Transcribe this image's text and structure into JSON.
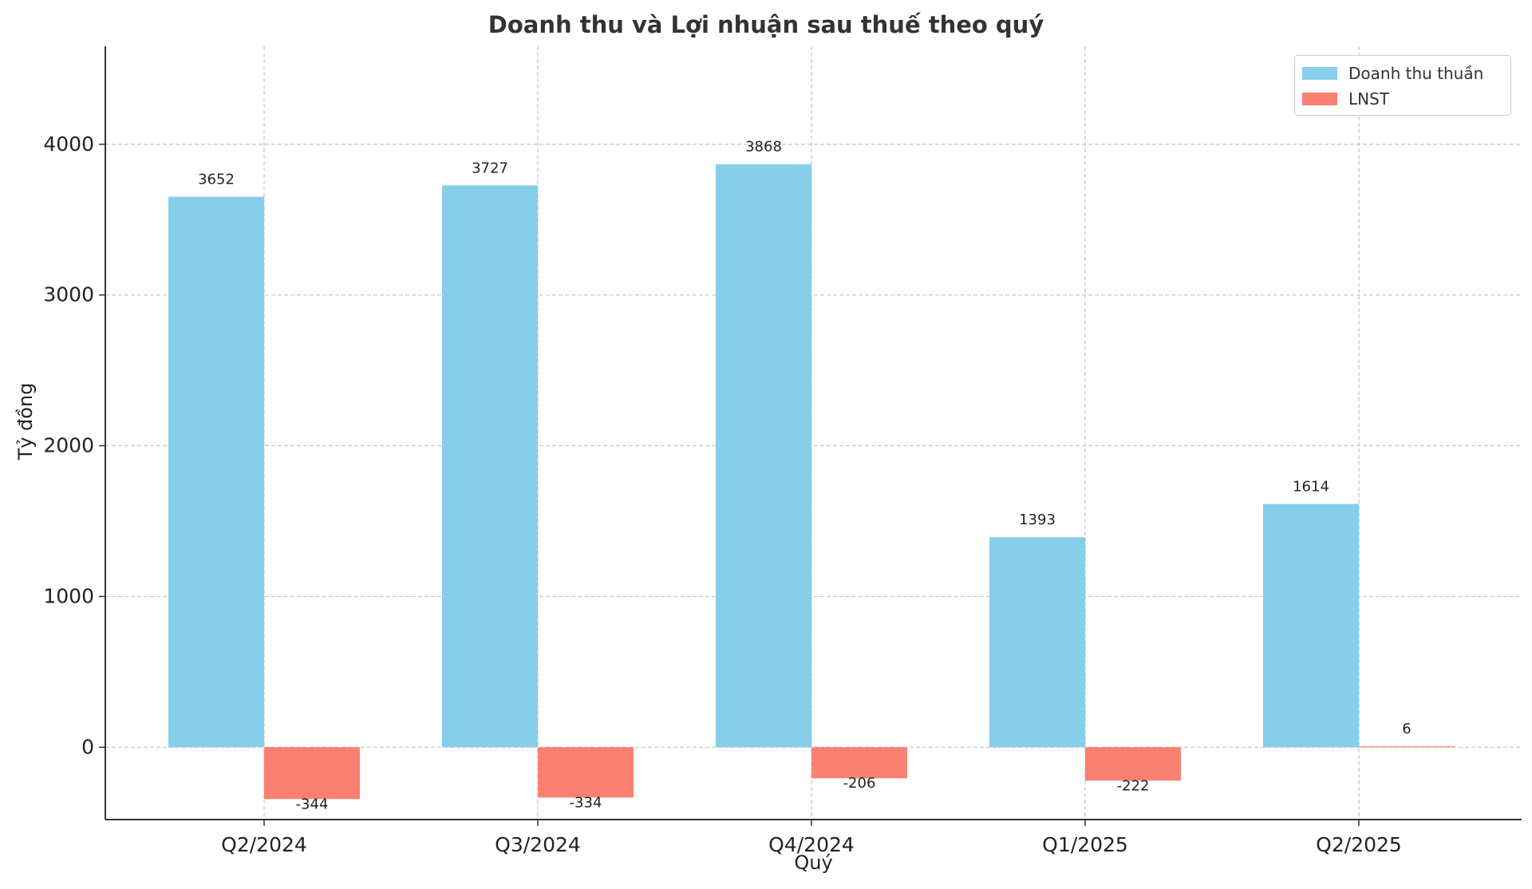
{
  "chart_data": {
    "type": "bar",
    "title": "Doanh thu và Lợi nhuận sau thuế theo quý",
    "xlabel": "Quý",
    "ylabel": "Tỷ đồng",
    "categories": [
      "Q2/2024",
      "Q3/2024",
      "Q4/2024",
      "Q1/2025",
      "Q2/2025"
    ],
    "series": [
      {
        "name": "Doanh thu thuần",
        "values": [
          3652,
          3727,
          3868,
          1393,
          1614
        ],
        "color": "#87CEEB"
      },
      {
        "name": "LNST",
        "values": [
          -344,
          -334,
          -206,
          -222,
          6
        ],
        "color": "#FA8072"
      }
    ],
    "ylim": [
      -480,
      4650
    ],
    "yticks": [
      0,
      1000,
      2000,
      3000,
      4000
    ],
    "grid": true,
    "legend_position": "top-right",
    "data_labels": true
  }
}
